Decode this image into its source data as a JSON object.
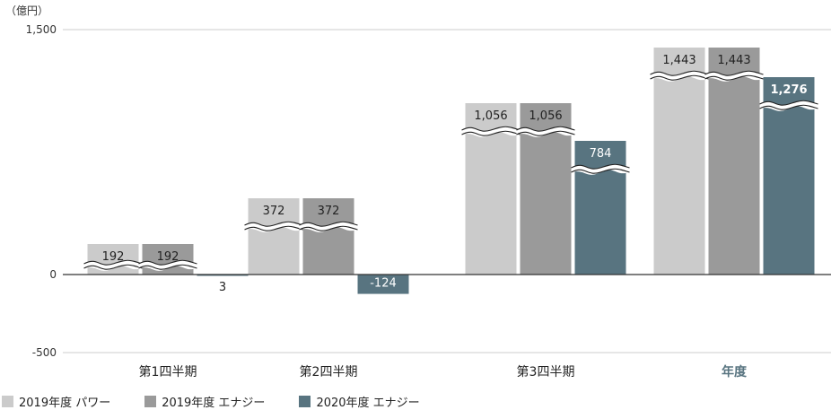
{
  "colors": {
    "series1": "#cbcbcb",
    "series2": "#9a9a9a",
    "series3": "#587480",
    "highlight": "#587480",
    "axis_text": "#333333",
    "grid": "#cccccc",
    "zero_line": "#333333"
  },
  "chart_data": {
    "type": "bar",
    "unit_label": "（億円）",
    "yticks": [
      "1,500",
      "0",
      "-500"
    ],
    "categories": [
      "第1四半期",
      "第2四半期",
      "第3四半期",
      "年度"
    ],
    "highlight_category": "年度",
    "series": [
      {
        "name": "2019年度 パワー",
        "values": [
          192,
          372,
          1056,
          1443
        ],
        "labels": [
          "192",
          "372",
          "1,056",
          "1,443"
        ]
      },
      {
        "name": "2019年度 エナジー",
        "values": [
          192,
          372,
          1056,
          1443
        ],
        "labels": [
          "192",
          "372",
          "1,056",
          "1,443"
        ]
      },
      {
        "name": "2020年度 エナジー",
        "values": [
          3,
          -124,
          784,
          1276
        ],
        "labels": [
          "3",
          "-124",
          "784",
          "1,276"
        ]
      }
    ],
    "axis_break": true,
    "grid": true
  },
  "legend": [
    {
      "label": "2019年度 パワー"
    },
    {
      "label": "2019年度 エナジー"
    },
    {
      "label": "2020年度 エナジー"
    }
  ]
}
